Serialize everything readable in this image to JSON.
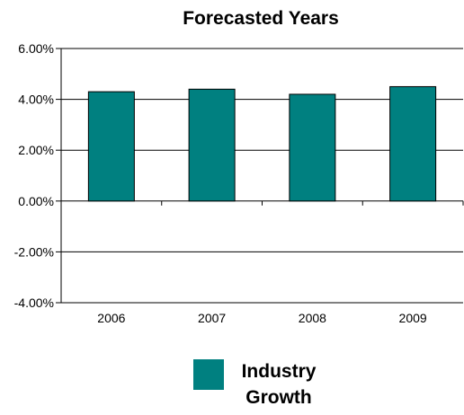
{
  "chart_data": {
    "type": "bar",
    "title": "Forecasted Years",
    "categories": [
      "2006",
      "2007",
      "2008",
      "2009"
    ],
    "series": [
      {
        "name": "Industry Growth",
        "values": [
          4.3,
          4.4,
          4.2,
          4.5
        ],
        "color": "#008080"
      }
    ],
    "ylim": [
      -4,
      6
    ],
    "yticks": [
      6,
      4,
      2,
      0,
      -2,
      -4
    ],
    "ytick_labels": [
      "6.00%",
      "4.00%",
      "2.00%",
      "0.00%",
      "-2.00%",
      "-4.00%"
    ],
    "gridlines": true,
    "legend": {
      "position": "bottom",
      "label_lines": [
        "Industry",
        "Growth"
      ]
    }
  }
}
